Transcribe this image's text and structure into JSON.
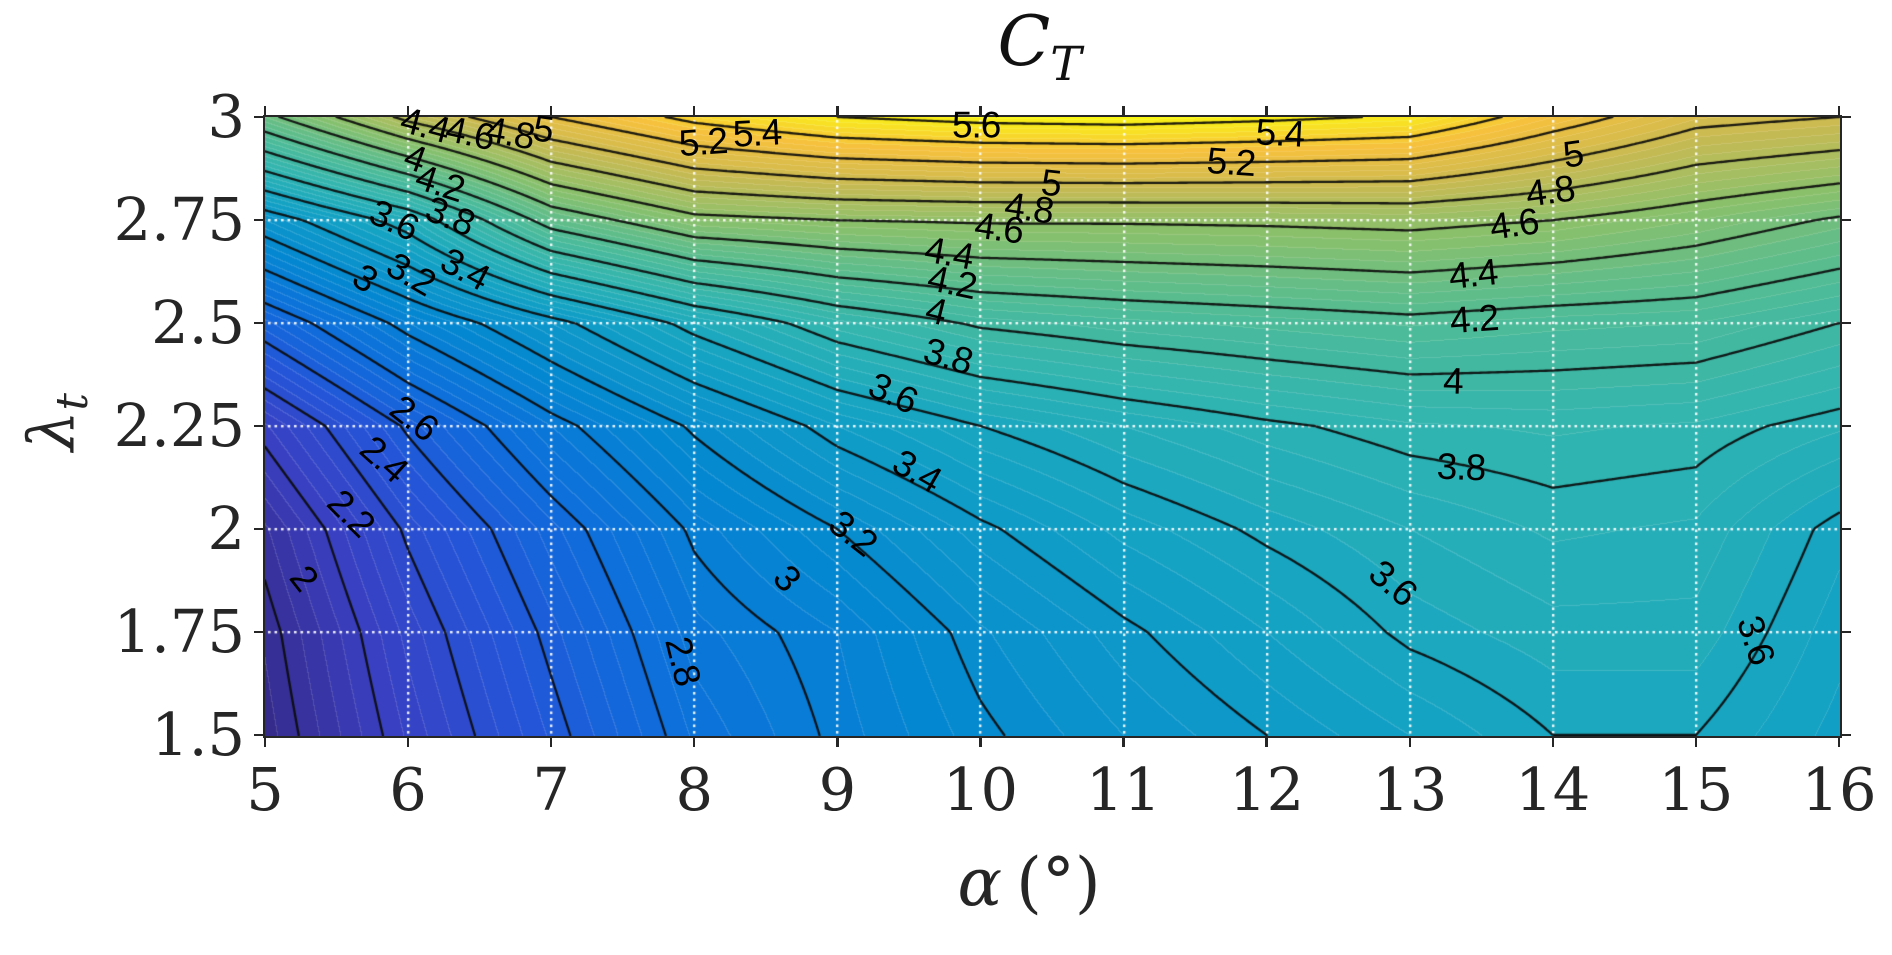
{
  "title": {
    "main": "C",
    "sub": "T"
  },
  "axes": {
    "xlabel_symbol": "α",
    "xlabel_unit": "(°)",
    "ylabel_symbol": "λ",
    "ylabel_sub": "t",
    "x_ticks": [
      "5",
      "6",
      "7",
      "8",
      "9",
      "10",
      "11",
      "12",
      "13",
      "14",
      "15",
      "16"
    ],
    "y_ticks": [
      "1.5",
      "1.75",
      "2",
      "2.25",
      "2.5",
      "2.75",
      "3"
    ],
    "tick_color": "#262626",
    "grid_color": "#ffffff"
  },
  "chart_data": {
    "type": "heatmap",
    "subtype": "filled-contour",
    "title": "C_T",
    "xlabel": "alpha (deg)",
    "ylabel": "lambda_t",
    "xlim": [
      5,
      16
    ],
    "ylim": [
      1.5,
      3
    ],
    "x": [
      5,
      6,
      7,
      8,
      9,
      10,
      11,
      12,
      13,
      14,
      15,
      16
    ],
    "y": [
      1.5,
      1.75,
      2,
      2.25,
      2.5,
      2.75,
      3
    ],
    "z": [
      [
        1.92,
        2.26,
        2.56,
        2.86,
        3.02,
        3.18,
        3.3,
        3.4,
        3.5,
        3.6,
        3.6,
        3.48
      ],
      [
        1.96,
        2.32,
        2.63,
        2.93,
        3.05,
        3.24,
        3.38,
        3.5,
        3.62,
        3.68,
        3.68,
        3.52
      ],
      [
        2.04,
        2.42,
        2.73,
        3.02,
        3.2,
        3.38,
        3.52,
        3.62,
        3.7,
        3.76,
        3.74,
        3.57
      ],
      [
        2.24,
        2.62,
        2.95,
        3.22,
        3.45,
        3.6,
        3.7,
        3.78,
        3.84,
        3.86,
        3.84,
        3.76
      ],
      [
        2.68,
        3.05,
        3.35,
        3.65,
        3.88,
        4.02,
        4.08,
        4.12,
        4.16,
        4.12,
        4.1,
        4.0
      ],
      [
        3.3,
        3.68,
        4.28,
        4.55,
        4.6,
        4.62,
        4.62,
        4.63,
        4.65,
        4.6,
        4.5,
        4.38
      ],
      [
        4.35,
        4.85,
        5.2,
        5.45,
        5.6,
        5.66,
        5.68,
        5.64,
        5.58,
        5.3,
        5.06,
        5.0
      ]
    ],
    "contour_interval": 0.2,
    "contour_levels": [
      2,
      2.2,
      2.4,
      2.6,
      2.8,
      3,
      3.2,
      3.4,
      3.6,
      3.8,
      4,
      4.2,
      4.4,
      4.6,
      4.8,
      5,
      5.2,
      5.4,
      5.6
    ],
    "fine_band_interval": 0.05,
    "vmin": 1.9,
    "vmax": 5.7,
    "colormap": "parula",
    "colormap_stops": [
      [
        0.0,
        "#352a87"
      ],
      [
        0.08,
        "#3a3fc1"
      ],
      [
        0.16,
        "#2455d8"
      ],
      [
        0.24,
        "#0d6fdb"
      ],
      [
        0.32,
        "#0487d1"
      ],
      [
        0.42,
        "#12a1c5"
      ],
      [
        0.5,
        "#2db3b3"
      ],
      [
        0.6,
        "#52bc94"
      ],
      [
        0.7,
        "#8ac06b"
      ],
      [
        0.8,
        "#c8ba52"
      ],
      [
        0.9,
        "#f7c13c"
      ],
      [
        1.0,
        "#f9fb0e"
      ]
    ],
    "line_color": "#0a0a0a",
    "labels": [
      {
        "v": "2",
        "x": 5.27,
        "y": 1.88,
        "r": 52
      },
      {
        "v": "2.2",
        "x": 5.6,
        "y": 2.04,
        "r": 45
      },
      {
        "v": "2.4",
        "x": 5.83,
        "y": 2.17,
        "r": 42
      },
      {
        "v": "2.6",
        "x": 6.04,
        "y": 2.27,
        "r": 38
      },
      {
        "v": "2.8",
        "x": 7.92,
        "y": 1.68,
        "r": 76
      },
      {
        "v": "3",
        "x": 8.65,
        "y": 1.88,
        "r": 48
      },
      {
        "v": "3",
        "x": 5.7,
        "y": 2.61,
        "r": 35
      },
      {
        "v": "3.2",
        "x": 9.11,
        "y": 1.99,
        "r": 38
      },
      {
        "v": "3.2",
        "x": 6.02,
        "y": 2.62,
        "r": 30
      },
      {
        "v": "3.4",
        "x": 9.56,
        "y": 2.14,
        "r": 30
      },
      {
        "v": "3.4",
        "x": 6.4,
        "y": 2.63,
        "r": 28
      },
      {
        "v": "3.6",
        "x": 9.39,
        "y": 2.33,
        "r": 25
      },
      {
        "v": "3.6",
        "x": 12.88,
        "y": 1.87,
        "r": 40
      },
      {
        "v": "3.6",
        "x": 15.42,
        "y": 1.73,
        "r": 72
      },
      {
        "v": "3.6",
        "x": 5.9,
        "y": 2.75,
        "r": 25
      },
      {
        "v": "3.8",
        "x": 9.77,
        "y": 2.42,
        "r": 16
      },
      {
        "v": "3.8",
        "x": 13.36,
        "y": 2.15,
        "r": 2
      },
      {
        "v": "3.8",
        "x": 6.29,
        "y": 2.76,
        "r": 22
      },
      {
        "v": "4",
        "x": 9.69,
        "y": 2.53,
        "r": 14
      },
      {
        "v": "4",
        "x": 13.3,
        "y": 2.36,
        "r": 2
      },
      {
        "v": "4",
        "x": 6.05,
        "y": 2.9,
        "r": 20
      },
      {
        "v": "4.2",
        "x": 9.8,
        "y": 2.6,
        "r": 12
      },
      {
        "v": "4.2",
        "x": 13.45,
        "y": 2.51,
        "r": -4
      },
      {
        "v": "4.2",
        "x": 6.22,
        "y": 2.84,
        "r": 18
      },
      {
        "v": "4.4",
        "x": 9.78,
        "y": 2.67,
        "r": 10
      },
      {
        "v": "4.4",
        "x": 13.44,
        "y": 2.62,
        "r": -6
      },
      {
        "v": "4.4",
        "x": 6.12,
        "y": 2.98,
        "r": 15
      },
      {
        "v": "4.6",
        "x": 10.13,
        "y": 2.73,
        "r": 8
      },
      {
        "v": "4.6",
        "x": 13.73,
        "y": 2.74,
        "r": -8
      },
      {
        "v": "4.6",
        "x": 6.43,
        "y": 2.96,
        "r": 12
      },
      {
        "v": "4.8",
        "x": 10.34,
        "y": 2.78,
        "r": 8
      },
      {
        "v": "4.8",
        "x": 13.98,
        "y": 2.82,
        "r": -8
      },
      {
        "v": "4.8",
        "x": 6.71,
        "y": 2.96,
        "r": 10
      },
      {
        "v": "5",
        "x": 10.49,
        "y": 2.84,
        "r": 6
      },
      {
        "v": "5",
        "x": 14.14,
        "y": 2.91,
        "r": -8
      },
      {
        "v": "5",
        "x": 6.94,
        "y": 2.97,
        "r": 8
      },
      {
        "v": "5.2",
        "x": 8.06,
        "y": 2.94,
        "r": -4
      },
      {
        "v": "5.2",
        "x": 11.75,
        "y": 2.89,
        "r": 4
      },
      {
        "v": "5.4",
        "x": 8.44,
        "y": 2.96,
        "r": -3
      },
      {
        "v": "5.4",
        "x": 12.09,
        "y": 2.96,
        "r": 3
      },
      {
        "v": "5.6",
        "x": 9.97,
        "y": 2.98,
        "r": 0
      }
    ],
    "grid": {
      "show": true,
      "style": "dotted",
      "x_lines": [
        6,
        7,
        8,
        9,
        10,
        11,
        12,
        13,
        14,
        15
      ],
      "y_lines": [
        1.75,
        2,
        2.25,
        2.5,
        2.75
      ]
    }
  }
}
